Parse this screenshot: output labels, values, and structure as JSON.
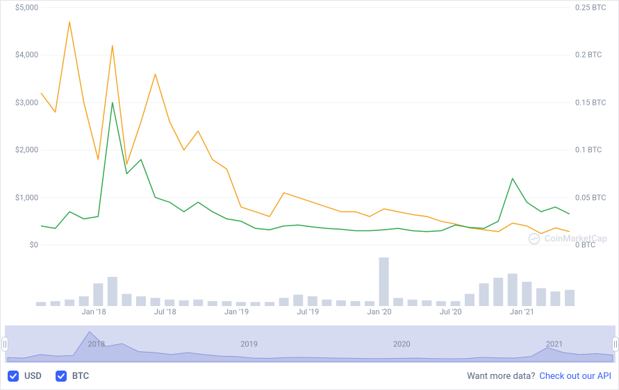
{
  "chart": {
    "type": "line",
    "background_color": "#ffffff",
    "grid_color": "#f0f2f5",
    "axis_label_color": "#808a9d",
    "axis_fontsize": 11,
    "left_axis": {
      "unit": "USD",
      "prefix": "$",
      "ylim": [
        0,
        5000
      ],
      "ticks": [
        0,
        1000,
        2000,
        3000,
        4000,
        5000
      ],
      "tick_labels": [
        "$0",
        "$1,000",
        "$2,000",
        "$3,000",
        "$4,000",
        "$5,000"
      ]
    },
    "right_axis": {
      "unit": "BTC",
      "suffix": " BTC",
      "ylim": [
        0,
        0.25
      ],
      "ticks": [
        0,
        0.05,
        0.1,
        0.15,
        0.2,
        0.25
      ],
      "tick_labels": [
        "0 BTC",
        "0.05 BTC",
        "0.1 BTC",
        "0.15 BTC",
        "0.2 BTC",
        "0.25 BTC"
      ]
    },
    "x_axis": {
      "ticks": [
        "Jan '18",
        "Jul '18",
        "Jan '19",
        "Jul '19",
        "Jan '20",
        "Jul '20",
        "Jan '21"
      ]
    },
    "series_usd": {
      "label": "USD",
      "color": "#33a852",
      "line_width": 1.5,
      "values": [
        400,
        350,
        700,
        550,
        600,
        3000,
        1500,
        1800,
        1000,
        900,
        700,
        900,
        700,
        550,
        500,
        350,
        320,
        400,
        420,
        380,
        350,
        330,
        300,
        300,
        320,
        350,
        300,
        280,
        300,
        420,
        370,
        350,
        500,
        1400,
        900,
        700,
        800,
        650
      ]
    },
    "series_btc": {
      "label": "BTC",
      "color": "#f5a623",
      "line_width": 1.5,
      "values": [
        0.16,
        0.14,
        0.235,
        0.15,
        0.09,
        0.21,
        0.085,
        0.13,
        0.18,
        0.13,
        0.1,
        0.12,
        0.09,
        0.08,
        0.04,
        0.035,
        0.03,
        0.055,
        0.05,
        0.045,
        0.04,
        0.035,
        0.035,
        0.03,
        0.038,
        0.035,
        0.032,
        0.03,
        0.025,
        0.022,
        0.018,
        0.016,
        0.014,
        0.023,
        0.02,
        0.012,
        0.018,
        0.014
      ]
    },
    "volume": {
      "color": "#cfd6e4",
      "values": [
        5,
        6,
        8,
        12,
        28,
        36,
        15,
        12,
        10,
        8,
        7,
        8,
        6,
        6,
        5,
        5,
        5,
        10,
        14,
        12,
        8,
        7,
        6,
        6,
        60,
        10,
        8,
        7,
        6,
        6,
        15,
        28,
        35,
        40,
        30,
        22,
        18,
        20
      ]
    },
    "brush": {
      "bg_color": "#f0f2fa",
      "area_color": "#aeb8e6",
      "line_color": "#8a96dc",
      "years": [
        "2018",
        "2019",
        "2020",
        "2021"
      ],
      "values": [
        400,
        350,
        700,
        550,
        600,
        3000,
        1500,
        1800,
        1000,
        900,
        700,
        900,
        700,
        550,
        500,
        350,
        320,
        400,
        420,
        380,
        350,
        330,
        300,
        300,
        320,
        350,
        300,
        280,
        300,
        420,
        370,
        350,
        500,
        1400,
        900,
        700,
        800,
        650
      ],
      "ymax": 3200
    },
    "watermark": {
      "text": "CoinMarketCap",
      "color": "#a6b0c3"
    }
  },
  "legend": {
    "checkbox_color": "#3861fb",
    "items": [
      {
        "key": "usd",
        "label": "USD",
        "checked": true
      },
      {
        "key": "btc",
        "label": "BTC",
        "checked": true
      }
    ]
  },
  "footer": {
    "prompt": "Want more data?",
    "cta_label": "Check out our API",
    "cta_color": "#3861fb"
  }
}
